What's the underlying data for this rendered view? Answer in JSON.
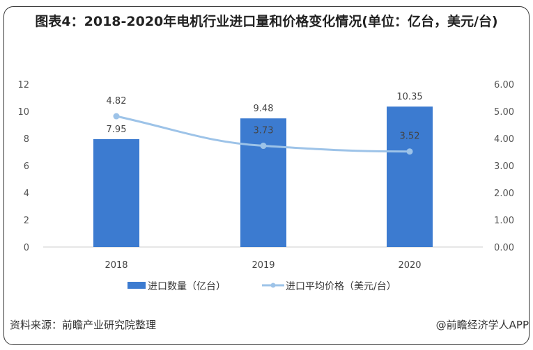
{
  "chart_data": {
    "type": "bar+line",
    "title": "图表4：2018-2020年电机行业进口量和价格变化情况(单位：亿台，美元/台)",
    "categories": [
      "2018",
      "2019",
      "2020"
    ],
    "series": [
      {
        "name": "进口数量（亿台）",
        "type": "bar",
        "axis": "left",
        "values": [
          7.95,
          9.48,
          10.35
        ],
        "color": "#3c7bd0"
      },
      {
        "name": "进口平均价格（美元/台）",
        "type": "line",
        "axis": "right",
        "values": [
          4.82,
          3.73,
          3.52
        ],
        "color": "#9dc3e8"
      }
    ],
    "y_left": {
      "ylim": [
        0,
        12
      ],
      "ticks": [
        "0",
        "2",
        "4",
        "6",
        "8",
        "10",
        "12"
      ]
    },
    "y_right": {
      "ylim": [
        0,
        6
      ],
      "ticks": [
        "0.00",
        "1.00",
        "2.00",
        "3.00",
        "4.00",
        "5.00",
        "6.00"
      ]
    },
    "grid": false,
    "legend": "bottom"
  },
  "footer": {
    "source": "资料来源：前瞻产业研究院整理",
    "credit": "@前瞻经济学人APP"
  }
}
